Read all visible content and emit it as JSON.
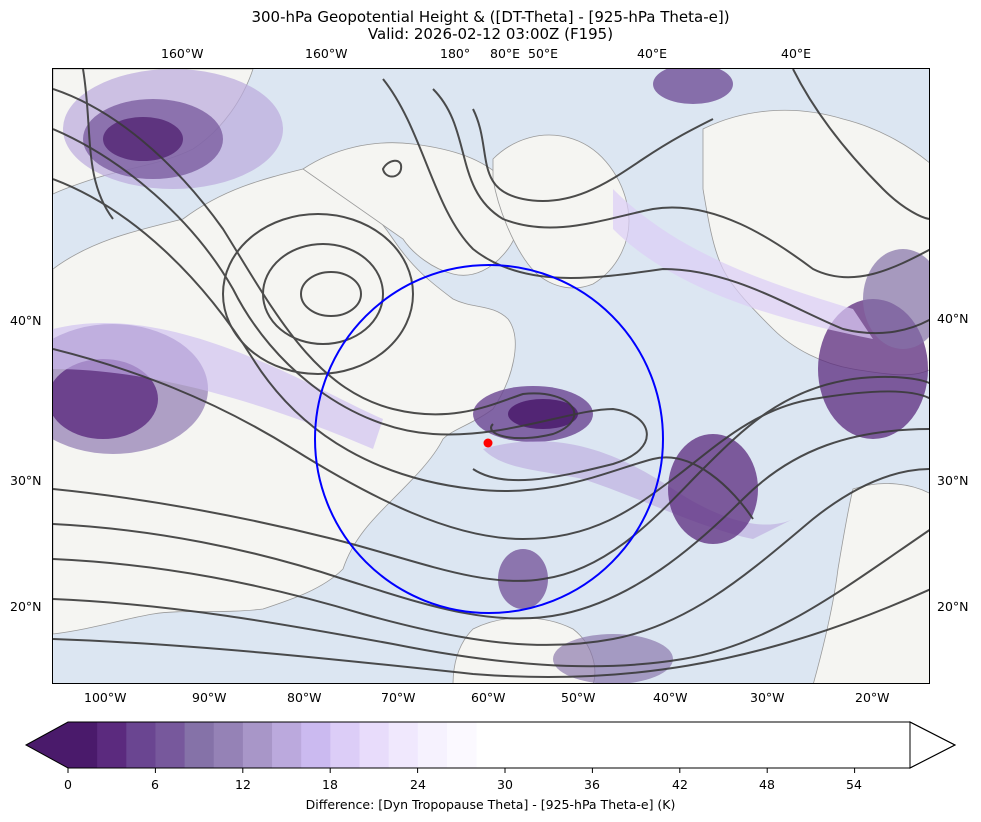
{
  "figure": {
    "title_line1": "300-hPa Geopotential Height & ([DT-Theta] - [925-hPa Theta-e])",
    "title_line2": "Valid: 2026-02-12 03:00Z (F195)"
  },
  "axes": {
    "top_ticks": [
      "160°W",
      "160°W",
      "180°",
      "80°E",
      "50°E",
      "40°E",
      "40°E"
    ],
    "bottom_ticks": [
      "100°W",
      "90°W",
      "80°W",
      "70°W",
      "60°W",
      "50°W",
      "40°W",
      "30°W",
      "20°W"
    ],
    "left_ticks": [
      "40°N",
      "30°N",
      "20°N"
    ],
    "right_ticks": [
      "40°N",
      "30°N",
      "20°N"
    ]
  },
  "colorbar": {
    "tick_labels": [
      "0",
      "6",
      "12",
      "18",
      "24",
      "30",
      "36",
      "42",
      "48",
      "54"
    ],
    "label": "Difference: [Dyn Tropopause Theta] - [925-hPa Theta-e] (K)",
    "colors": [
      "#4a1a6b",
      "#5b2a7e",
      "#6a4591",
      "#77589c",
      "#8572a8",
      "#9582b6",
      "#a896c8",
      "#bba9dd",
      "#cbbaf0",
      "#dccdf7",
      "#e8dcfb",
      "#f0e8fd",
      "#f6f2fe",
      "#fbf9ff"
    ],
    "extend": "both"
  },
  "map": {
    "land_color": "#f5f5f2",
    "ocean_color": "#dce6f2",
    "contour_color": "#3a3a3a",
    "circle_color": "#0000ff",
    "marker_color": "#ff0000"
  }
}
